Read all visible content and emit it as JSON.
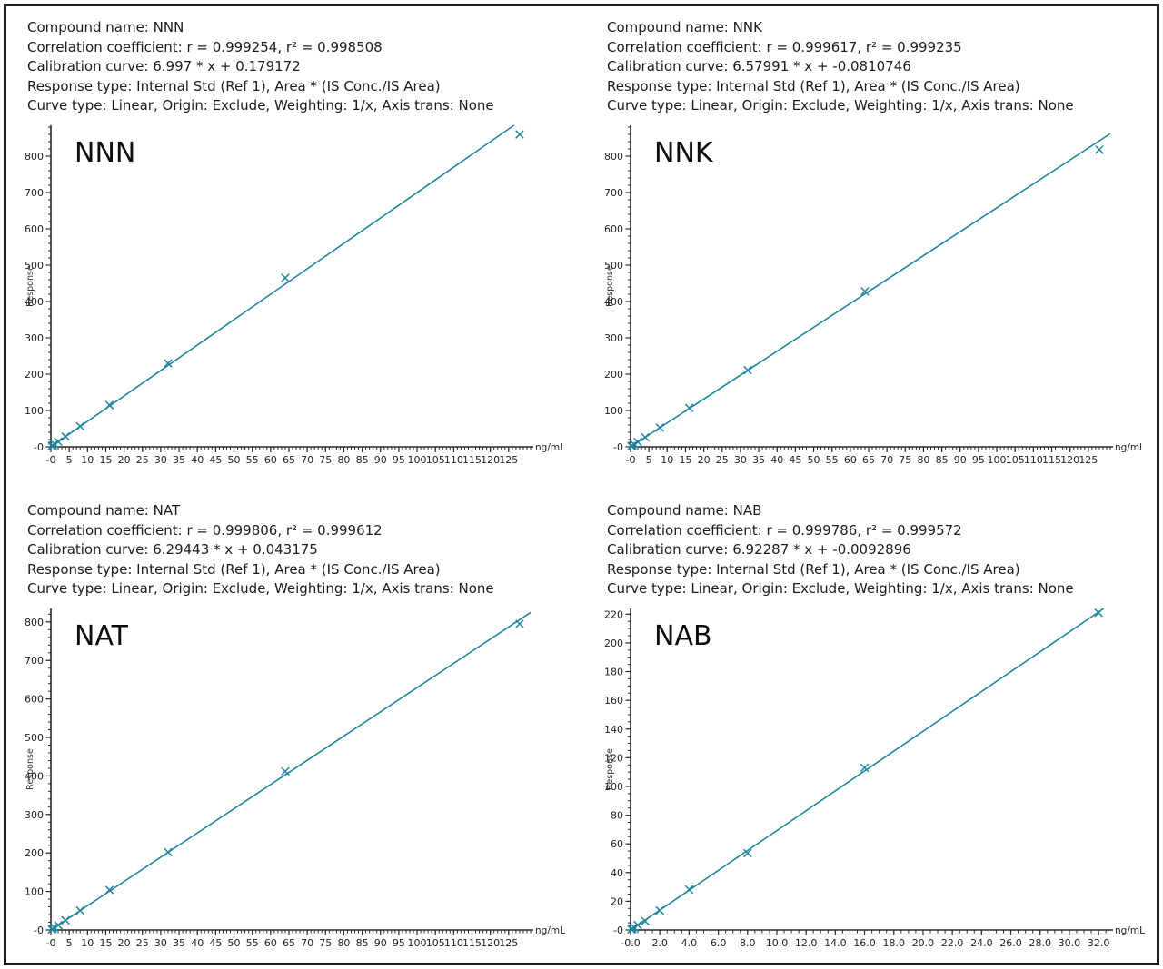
{
  "page": {
    "background": "#ffffff",
    "frame_color": "#1b1b1b",
    "accent_color": "#1f85a0",
    "axis_color": "#2b2b2b",
    "text_color": "#1c1c1c"
  },
  "panels": [
    {
      "id": "nnn",
      "header_lines": [
        "Compound name: NNN",
        "Correlation coefficient: r = 0.999254, r² = 0.998508",
        "Calibration curve: 6.997 * x + 0.179172",
        "Response type: Internal Std (Ref 1), Area * (IS Conc./IS Area)",
        "Curve type: Linear, Origin: Exclude, Weighting: 1/x, Axis trans: None"
      ]
    },
    {
      "id": "nnk",
      "header_lines": [
        "Compound name: NNK",
        "Correlation coefficient: r = 0.999617, r² = 0.999235",
        "Calibration curve: 6.57991 * x + -0.0810746",
        "Response type: Internal Std (Ref 1), Area * (IS Conc./IS Area)",
        "Curve type: Linear, Origin: Exclude, Weighting: 1/x, Axis trans: None"
      ]
    },
    {
      "id": "nat",
      "header_lines": [
        "Compound name: NAT",
        "Correlation coefficient: r = 0.999806, r² = 0.999612",
        "Calibration curve: 6.29443 * x + 0.043175",
        "Response type: Internal Std (Ref 1), Area * (IS Conc./IS Area)",
        "Curve type: Linear, Origin: Exclude, Weighting: 1/x, Axis trans: None"
      ]
    },
    {
      "id": "nab",
      "header_lines": [
        "Compound name: NAB",
        "Correlation coefficient: r = 0.999786, r² = 0.999572",
        "Calibration curve: 6.92287 * x + -0.0092896",
        "Response type: Internal Std (Ref 1), Area * (IS Conc./IS Area)",
        "Curve type: Linear, Origin: Exclude, Weighting: 1/x, Axis trans: None"
      ]
    }
  ],
  "chart_data": [
    {
      "type": "scatter",
      "title": "NNN",
      "xlabel": "ng/mL",
      "ylabel": "Response",
      "xlim": [
        0,
        131
      ],
      "ylim": [
        0,
        885
      ],
      "x_tick_values": [
        0,
        5,
        10,
        15,
        20,
        25,
        30,
        35,
        40,
        45,
        50,
        55,
        60,
        65,
        70,
        75,
        80,
        85,
        90,
        95,
        100,
        105,
        110,
        115,
        120,
        125
      ],
      "x_tick_labels": [
        "-0",
        "5",
        "10",
        "15",
        "20",
        "25",
        "30",
        "35",
        "40",
        "45",
        "50",
        "55",
        "60",
        "65",
        "70",
        "75",
        "80",
        "85",
        "90",
        "95",
        "100",
        "105",
        "110",
        "115",
        "120",
        "125"
      ],
      "x_minor_step": 1,
      "y_tick_values": [
        0,
        100,
        200,
        300,
        400,
        500,
        600,
        700,
        800
      ],
      "y_tick_labels": [
        "-0",
        "100",
        "200",
        "300",
        "400",
        "500",
        "600",
        "700",
        "800"
      ],
      "y_minor_step": 20,
      "fit": {
        "slope": 6.997,
        "intercept": 0.179172
      },
      "points": [
        [
          0.25,
          1.9
        ],
        [
          0.5,
          3.7
        ],
        [
          1,
          7.2
        ],
        [
          2,
          14.2
        ],
        [
          4,
          28.2
        ],
        [
          8,
          56.5
        ],
        [
          16,
          115
        ],
        [
          32,
          230
        ],
        [
          64,
          465
        ],
        [
          128,
          860
        ]
      ],
      "line_color": "#1f85a0",
      "axis_color": "#2b2b2b",
      "grid": false,
      "legend": "none"
    },
    {
      "type": "scatter",
      "title": "NNK",
      "xlabel": "ng/ml",
      "ylabel": "Response",
      "xlim": [
        0,
        131
      ],
      "ylim": [
        0,
        885
      ],
      "x_tick_values": [
        0,
        5,
        10,
        15,
        20,
        25,
        30,
        35,
        40,
        45,
        50,
        55,
        60,
        65,
        70,
        75,
        80,
        85,
        90,
        95,
        100,
        105,
        110,
        115,
        120,
        125
      ],
      "x_tick_labels": [
        "-0",
        "5",
        "10",
        "15",
        "20",
        "25",
        "30",
        "35",
        "40",
        "45",
        "50",
        "55",
        "60",
        "65",
        "70",
        "75",
        "80",
        "85",
        "90",
        "95",
        "100",
        "105",
        "110",
        "115",
        "120",
        "125"
      ],
      "x_minor_step": 1,
      "y_tick_values": [
        0,
        100,
        200,
        300,
        400,
        500,
        600,
        700,
        800
      ],
      "y_tick_labels": [
        "-0",
        "100",
        "200",
        "300",
        "400",
        "500",
        "600",
        "700",
        "800"
      ],
      "y_minor_step": 20,
      "fit": {
        "slope": 6.57991,
        "intercept": -0.0810746
      },
      "points": [
        [
          0.25,
          1.6
        ],
        [
          0.5,
          3.3
        ],
        [
          1,
          6.6
        ],
        [
          2,
          13.2
        ],
        [
          4,
          26.4
        ],
        [
          8,
          53
        ],
        [
          16,
          107
        ],
        [
          32,
          211
        ],
        [
          64,
          428
        ],
        [
          128,
          818
        ]
      ],
      "line_color": "#1f85a0",
      "axis_color": "#2b2b2b",
      "grid": false,
      "legend": "none"
    },
    {
      "type": "scatter",
      "title": "NAT",
      "xlabel": "ng/mL",
      "ylabel": "Response",
      "xlim": [
        0,
        131
      ],
      "ylim": [
        0,
        835
      ],
      "x_tick_values": [
        0,
        5,
        10,
        15,
        20,
        25,
        30,
        35,
        40,
        45,
        50,
        55,
        60,
        65,
        70,
        75,
        80,
        85,
        90,
        95,
        100,
        105,
        110,
        115,
        120,
        125
      ],
      "x_tick_labels": [
        "-0",
        "5",
        "10",
        "15",
        "20",
        "25",
        "30",
        "35",
        "40",
        "45",
        "50",
        "55",
        "60",
        "65",
        "70",
        "75",
        "80",
        "85",
        "90",
        "95",
        "100",
        "105",
        "110",
        "115",
        "120",
        "125"
      ],
      "x_minor_step": 1,
      "y_tick_values": [
        0,
        100,
        200,
        300,
        400,
        500,
        600,
        700,
        800
      ],
      "y_tick_labels": [
        "-0",
        "100",
        "200",
        "300",
        "400",
        "500",
        "600",
        "700",
        "800"
      ],
      "y_minor_step": 20,
      "fit": {
        "slope": 6.29443,
        "intercept": 0.043175
      },
      "points": [
        [
          0.25,
          1.6
        ],
        [
          0.5,
          3.2
        ],
        [
          1,
          6.3
        ],
        [
          2,
          12.6
        ],
        [
          4,
          25.2
        ],
        [
          8,
          50.5
        ],
        [
          16,
          104
        ],
        [
          32,
          202
        ],
        [
          64,
          412
        ],
        [
          128,
          795
        ]
      ],
      "line_color": "#1f85a0",
      "axis_color": "#2b2b2b",
      "grid": false,
      "legend": "none"
    },
    {
      "type": "scatter",
      "title": "NAB",
      "xlabel": "ng/mL",
      "ylabel": "Response",
      "xlim": [
        0,
        32.8
      ],
      "ylim": [
        0,
        224
      ],
      "x_tick_values": [
        0,
        2,
        4,
        6,
        8,
        10,
        12,
        14,
        16,
        18,
        20,
        22,
        24,
        26,
        28,
        30,
        32
      ],
      "x_tick_labels": [
        "-0.0",
        "2.0",
        "4.0",
        "6.0",
        "8.0",
        "10.0",
        "12.0",
        "14.0",
        "16.0",
        "18.0",
        "20.0",
        "22.0",
        "24.0",
        "26.0",
        "28.0",
        "30.0",
        "32.0"
      ],
      "x_minor_step": 0.5,
      "y_tick_values": [
        0,
        20,
        40,
        60,
        80,
        100,
        120,
        140,
        160,
        180,
        200,
        220
      ],
      "y_tick_labels": [
        "-0",
        "20",
        "40",
        "60",
        "80",
        "100",
        "120",
        "140",
        "160",
        "180",
        "200",
        "220"
      ],
      "y_minor_step": 5,
      "fit": {
        "slope": 6.92287,
        "intercept": -0.0092896
      },
      "points": [
        [
          0.0625,
          0.4
        ],
        [
          0.125,
          0.85
        ],
        [
          0.25,
          1.7
        ],
        [
          0.5,
          3.4
        ],
        [
          1,
          6.2
        ],
        [
          2,
          13.6
        ],
        [
          4,
          28.2
        ],
        [
          8,
          53.5
        ],
        [
          16,
          113
        ],
        [
          32,
          221
        ]
      ],
      "line_color": "#1f85a0",
      "axis_color": "#2b2b2b",
      "grid": false,
      "legend": "none"
    }
  ]
}
